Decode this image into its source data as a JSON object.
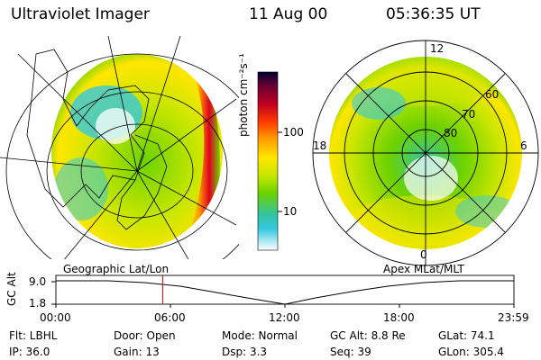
{
  "header": {
    "instrument": "Ultraviolet Imager",
    "date": "11 Aug 00",
    "time": "05:36:35 UT"
  },
  "colorbar": {
    "unit_label": "photon cm⁻²s⁻¹",
    "ticks": [
      "100",
      "10"
    ],
    "scale": "log",
    "colors": [
      "#000033",
      "#6a0033",
      "#c00020",
      "#ff3b00",
      "#ffa000",
      "#ffe600",
      "#c8e600",
      "#6cd200",
      "#33c4a0",
      "#36c8e0",
      "#ffffff"
    ]
  },
  "left_map": {
    "projection_label": "Geographic Lat/Lon"
  },
  "right_map": {
    "projection_label": "Apex MLat/MLT",
    "mlt_labels": {
      "top": "12",
      "left": "18",
      "right": "6",
      "bottom": "0"
    },
    "mlat_labels": [
      "60",
      "70",
      "80"
    ]
  },
  "timeline": {
    "y_label": "GC Alt",
    "y_ticks": [
      "9.0",
      "1.8"
    ],
    "x_ticks": [
      "00:00",
      "06:00",
      "12:00",
      "18:00",
      "23:59"
    ],
    "marker_fraction": 0.233
  },
  "footer": {
    "filter": "Flt: LBHL",
    "ip": "IP: 36.0",
    "door": "Door: Open",
    "gain": "Gain: 13",
    "mode": "Mode: Normal",
    "dsp": "Dsp:     3.3",
    "gc_alt": "GC Alt: 8.8 Re",
    "seq": "Seq: 39",
    "glat": "GLat:  74.1",
    "glon": "GLon: 305.4"
  }
}
